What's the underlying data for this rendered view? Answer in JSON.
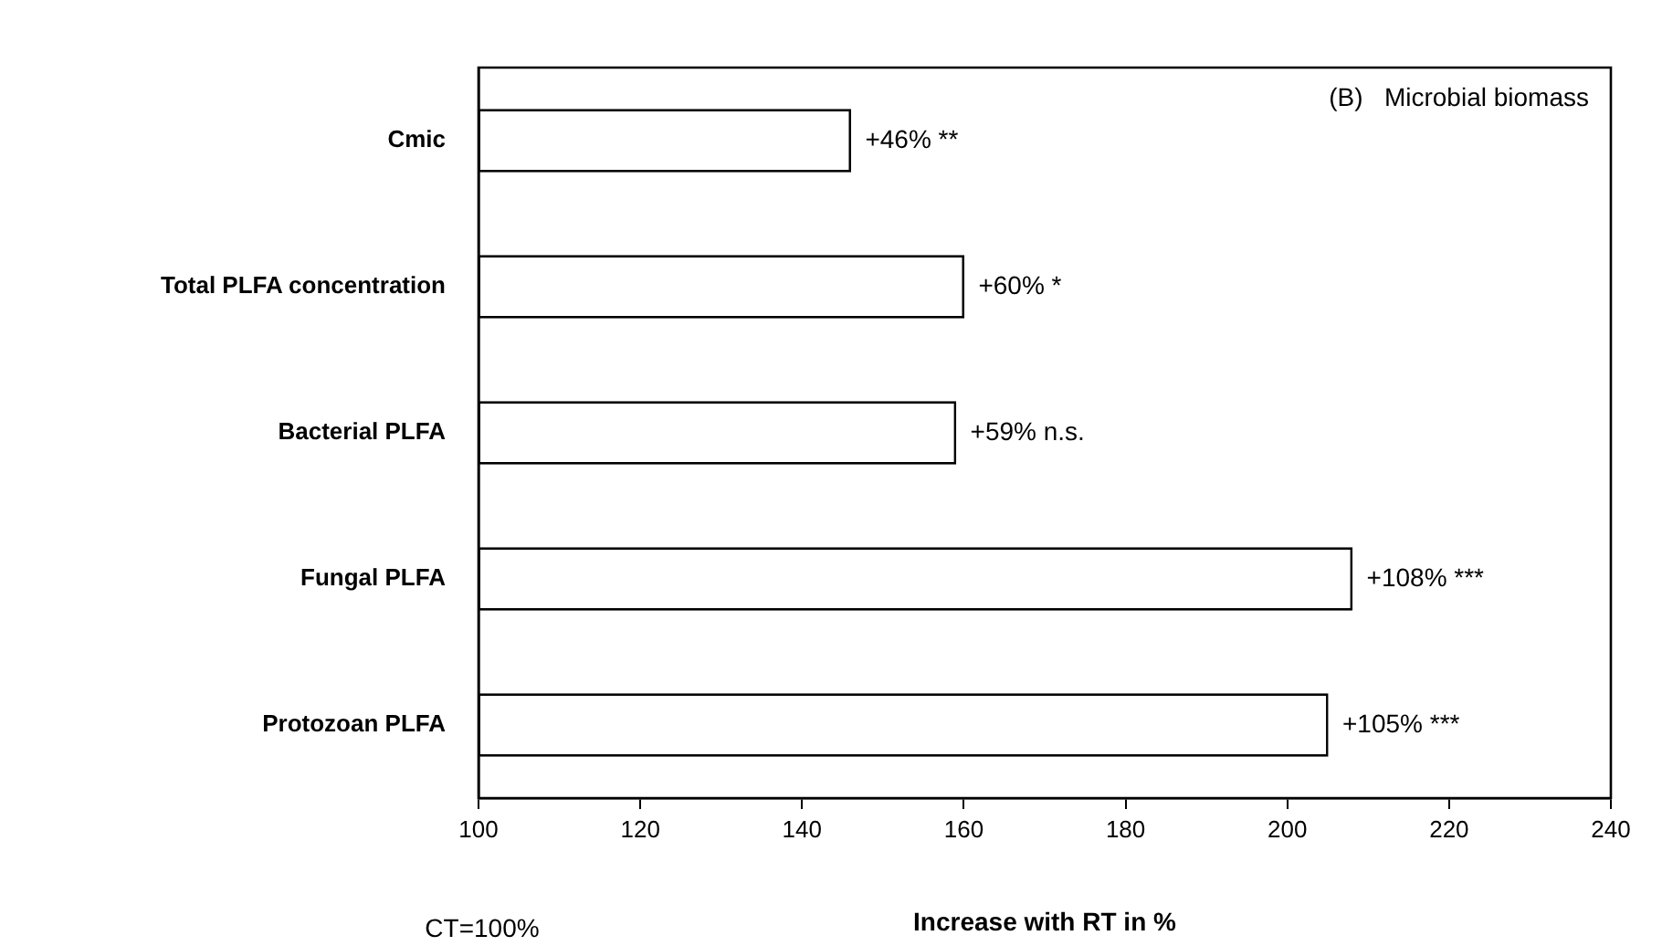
{
  "chart_data": {
    "type": "bar",
    "orientation": "horizontal",
    "categories": [
      "Cmic",
      "Total PLFA concentration",
      "Bacterial PLFA",
      "Fungal PLFA",
      "Protozoan PLFA"
    ],
    "values": [
      46,
      60,
      59,
      108,
      105
    ],
    "base": [
      100,
      100,
      100,
      100,
      100
    ],
    "value_labels": [
      "+46% **",
      "+60% *",
      "+59% n.s.",
      "+108% ***",
      "+105% ***"
    ],
    "color": "#ffffff",
    "xlabel": "Increase with RT in %",
    "xlim": [
      100,
      240
    ],
    "xticks": [
      100,
      120,
      140,
      160,
      180,
      200,
      220,
      240
    ],
    "annotations": [
      "(B)   Microbial biomass",
      "CT=100%"
    ],
    "grid": false,
    "legend": false
  }
}
